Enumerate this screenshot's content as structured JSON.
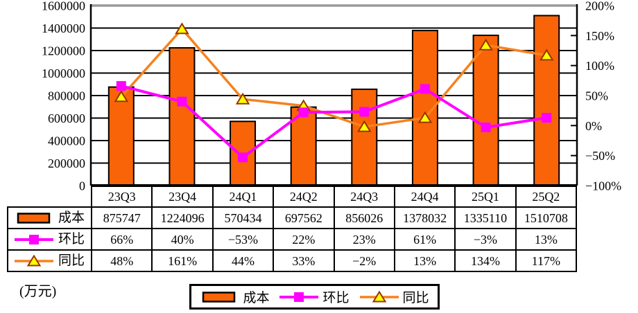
{
  "unit_label": "(万元)",
  "colors": {
    "bar_fill": "#F96408",
    "bar_border": "#000000",
    "mom_line": "#FF00FF",
    "yoy_line": "#F5821F",
    "yoy_marker_fill": "#FFFF00",
    "yoy_marker_border": "#993300",
    "grid": "#000000",
    "plot_top_border": "#999999",
    "background": "#FFFFFF"
  },
  "chart_data": {
    "type": "combo",
    "categories": [
      "23Q3",
      "23Q4",
      "24Q1",
      "24Q2",
      "24Q3",
      "24Q4",
      "25Q1",
      "25Q2"
    ],
    "series": [
      {
        "id": "cost",
        "name": "成本",
        "type": "bar",
        "axis": "left",
        "values": [
          875747,
          1224096,
          570434,
          697562,
          856026,
          1378032,
          1335110,
          1510708
        ]
      },
      {
        "id": "mom",
        "name": "环比",
        "type": "line",
        "axis": "right",
        "marker": "square",
        "values": [
          66,
          40,
          -53,
          22,
          23,
          61,
          -3,
          13
        ]
      },
      {
        "id": "yoy",
        "name": "同比",
        "type": "line",
        "axis": "right",
        "marker": "triangle",
        "values": [
          48,
          161,
          44,
          33,
          -2,
          13,
          134,
          117
        ]
      }
    ],
    "left_axis": {
      "min": 0,
      "max": 1600000,
      "step": 200000,
      "unit": "万元",
      "tick_labels": [
        "0",
        "200000",
        "400000",
        "600000",
        "800000",
        "1000000",
        "1200000",
        "1400000",
        "1600000"
      ]
    },
    "right_axis": {
      "min": -100,
      "max": 200,
      "step": 50,
      "tick_labels": [
        "−100%",
        "−50%",
        "0%",
        "50%",
        "100%",
        "150%",
        "200%"
      ]
    },
    "grid": true,
    "legend_position": "bottom"
  },
  "table": {
    "rows": [
      {
        "id": "cost",
        "label": "成本",
        "key": "bar",
        "cells": [
          "875747",
          "1224096",
          "570434",
          "697562",
          "856026",
          "1378032",
          "1335110",
          "1510708"
        ]
      },
      {
        "id": "mom",
        "label": "环比",
        "key": "square",
        "cells": [
          "66%",
          "40%",
          "−53%",
          "22%",
          "23%",
          "61%",
          "−3%",
          "13%"
        ]
      },
      {
        "id": "yoy",
        "label": "同比",
        "key": "triangle",
        "cells": [
          "48%",
          "161%",
          "44%",
          "33%",
          "−2%",
          "13%",
          "134%",
          "117%"
        ]
      }
    ]
  },
  "legend": {
    "items": [
      {
        "id": "cost",
        "label": "成本",
        "key": "bar"
      },
      {
        "id": "mom",
        "label": "环比",
        "key": "square"
      },
      {
        "id": "yoy",
        "label": "同比",
        "key": "triangle"
      }
    ]
  }
}
